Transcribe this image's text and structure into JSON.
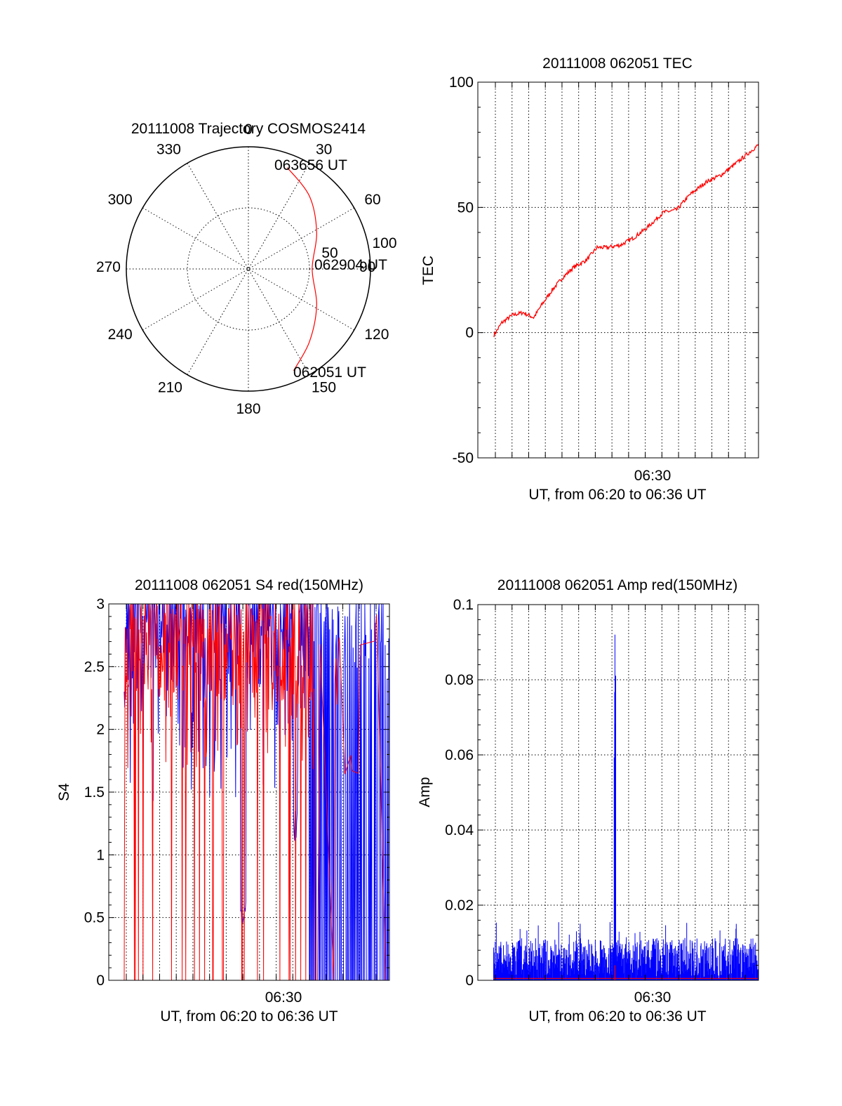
{
  "colors": {
    "red": "#ff0000",
    "blue": "#0000ff",
    "axis": "#000000"
  },
  "chart_data": [
    {
      "id": "trajectory",
      "type": "polar",
      "title": "20111008 Trajectory COSMOS2414",
      "azimuth_labels": [
        "0",
        "30",
        "60",
        "90",
        "120",
        "150",
        "180",
        "210",
        "240",
        "270",
        "300",
        "330"
      ],
      "radial_labels": [
        "50",
        "100"
      ],
      "annotations": [
        "063656 UT",
        "062904 UT",
        "062051 UT"
      ],
      "grid": true,
      "series": [
        {
          "color": "red",
          "points": [
            {
              "az": 21,
              "elev": 10,
              "time": "063656 UT"
            },
            {
              "az": 40,
              "elev": 20
            },
            {
              "az": 62,
              "elev": 33
            },
            {
              "az": 90,
              "elev": 43,
              "time": "062904 UT"
            },
            {
              "az": 118,
              "elev": 33
            },
            {
              "az": 140,
              "elev": 20
            },
            {
              "az": 156,
              "elev": 8,
              "time": "062051 UT"
            }
          ]
        }
      ]
    },
    {
      "id": "tec",
      "type": "line",
      "title": "20111008 062051 TEC",
      "xlabel": "UT, from 06:20 to 06:36 UT",
      "ylabel": "TEC",
      "xtick_labels": [
        "06:30"
      ],
      "yticks": [
        "-50",
        "0",
        "50",
        "100"
      ],
      "ylim": [
        -50,
        100
      ],
      "grid": true,
      "series": [
        {
          "color": "red",
          "points": [
            [
              0.0,
              -1
            ],
            [
              0.03,
              4
            ],
            [
              0.07,
              7
            ],
            [
              0.11,
              8
            ],
            [
              0.15,
              6
            ],
            [
              0.18,
              11
            ],
            [
              0.22,
              17
            ],
            [
              0.26,
              22
            ],
            [
              0.3,
              26
            ],
            [
              0.35,
              29
            ],
            [
              0.39,
              34
            ],
            [
              0.43,
              34
            ],
            [
              0.48,
              35
            ],
            [
              0.53,
              38
            ],
            [
              0.58,
              42
            ],
            [
              0.64,
              48
            ],
            [
              0.69,
              49
            ],
            [
              0.74,
              55
            ],
            [
              0.8,
              60
            ],
            [
              0.86,
              63
            ],
            [
              0.92,
              68
            ],
            [
              1.0,
              75
            ]
          ]
        }
      ]
    },
    {
      "id": "s4",
      "type": "line",
      "title": "20111008 062051 S4 red(150MHz)",
      "xlabel": "UT, from 06:20 to 06:36 UT",
      "ylabel": "S4",
      "xtick_labels": [
        "06:30"
      ],
      "yticks": [
        "0",
        "0.5",
        "1",
        "1.5",
        "2",
        "2.5",
        "3"
      ],
      "ylim": [
        0,
        3
      ],
      "grid": true,
      "series": [
        {
          "color": "blue",
          "description": "noisy S4, mostly 2-3"
        },
        {
          "color": "red",
          "description": "noisy S4, frequent drops to 0"
        }
      ]
    },
    {
      "id": "amp",
      "type": "line",
      "title": "20111008 062051 Amp red(150MHz)",
      "xlabel": "UT, from 06:20 to 06:36 UT",
      "ylabel": "Amp",
      "xtick_labels": [
        "06:30"
      ],
      "yticks": [
        "0",
        "0.02",
        "0.04",
        "0.06",
        "0.08",
        "0.1"
      ],
      "ylim": [
        0,
        0.1
      ],
      "grid": true,
      "series": [
        {
          "color": "blue",
          "baseline": 0.008,
          "peak": {
            "x": 0.46,
            "y": 0.092
          }
        },
        {
          "color": "red",
          "baseline": 0.0005,
          "peak": {
            "x": 0.46,
            "y": 0.004
          }
        }
      ]
    }
  ]
}
